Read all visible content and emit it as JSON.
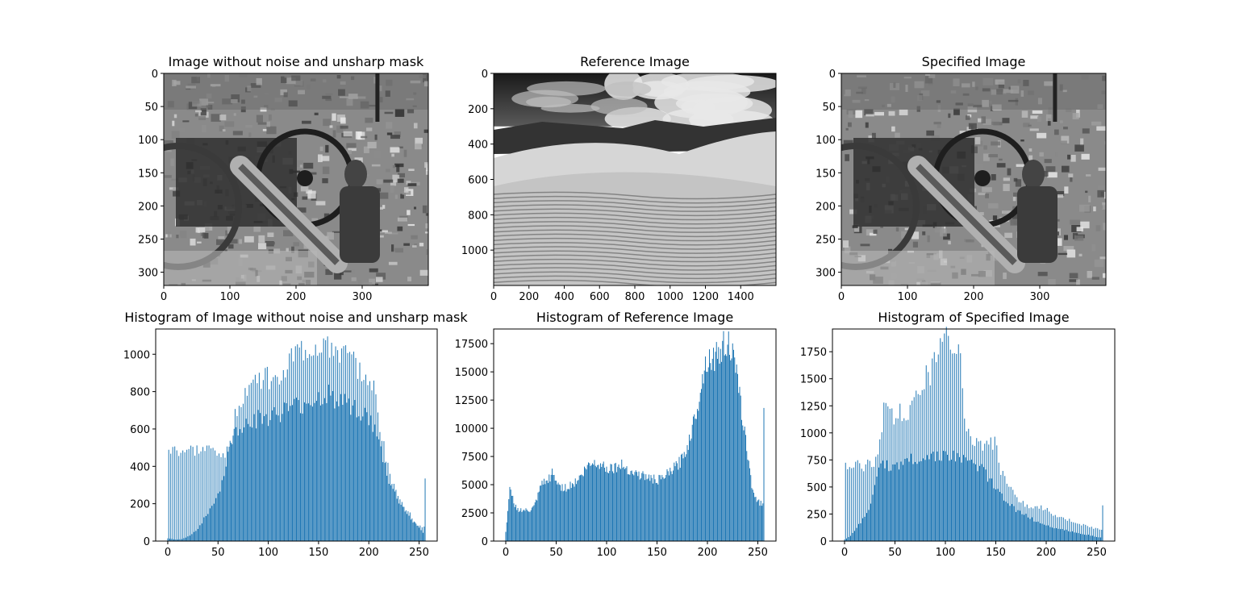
{
  "figure": {
    "image_panels": [
      {
        "title": "Image without noise and unsharp mask",
        "xticks": [
          "0",
          "100",
          "200",
          "300"
        ],
        "xtick_values": [
          0,
          100,
          200,
          300
        ],
        "yticks": [
          "0",
          "50",
          "100",
          "150",
          "200",
          "250",
          "300"
        ],
        "ytick_values": [
          0,
          50,
          100,
          150,
          200,
          250,
          300
        ],
        "xlim": [
          0,
          400
        ],
        "ylim": [
          0,
          320
        ],
        "scene": "cannon"
      },
      {
        "title": "Reference Image",
        "xticks": [
          "0",
          "200",
          "400",
          "600",
          "800",
          "1000",
          "1200",
          "1400"
        ],
        "xtick_values": [
          0,
          200,
          400,
          600,
          800,
          1000,
          1200,
          1400
        ],
        "yticks": [
          "0",
          "200",
          "400",
          "600",
          "800",
          "1000"
        ],
        "ytick_values": [
          0,
          200,
          400,
          600,
          800,
          1000
        ],
        "xlim": [
          0,
          1600
        ],
        "ylim": [
          0,
          1200
        ],
        "scene": "dunes"
      },
      {
        "title": "Specified Image",
        "xticks": [
          "0",
          "100",
          "200",
          "300"
        ],
        "xtick_values": [
          0,
          100,
          200,
          300
        ],
        "yticks": [
          "0",
          "50",
          "100",
          "150",
          "200",
          "250",
          "300"
        ],
        "ytick_values": [
          0,
          50,
          100,
          150,
          200,
          250,
          300
        ],
        "xlim": [
          0,
          400
        ],
        "ylim": [
          0,
          320
        ],
        "scene": "cannon"
      }
    ]
  },
  "chart_data": [
    {
      "type": "bar",
      "title": "Histogram of Image without noise and unsharp mask",
      "xlim": [
        -12,
        268
      ],
      "ylim": [
        0,
        1135
      ],
      "xticks": [
        0,
        50,
        100,
        150,
        200,
        250
      ],
      "yticks": [
        0,
        200,
        400,
        600,
        800,
        1000
      ],
      "bar_color": "#1f77b4",
      "envelope": [
        [
          0,
          15
        ],
        [
          5,
          10
        ],
        [
          10,
          8
        ],
        [
          15,
          12
        ],
        [
          20,
          25
        ],
        [
          25,
          40
        ],
        [
          30,
          70
        ],
        [
          35,
          110
        ],
        [
          40,
          150
        ],
        [
          45,
          200
        ],
        [
          50,
          250
        ],
        [
          55,
          330
        ],
        [
          60,
          460
        ],
        [
          65,
          560
        ],
        [
          70,
          600
        ],
        [
          75,
          620
        ],
        [
          80,
          640
        ],
        [
          90,
          650
        ],
        [
          100,
          660
        ],
        [
          110,
          680
        ],
        [
          120,
          700
        ],
        [
          130,
          720
        ],
        [
          140,
          740
        ],
        [
          150,
          760
        ],
        [
          160,
          780
        ],
        [
          170,
          760
        ],
        [
          180,
          740
        ],
        [
          190,
          700
        ],
        [
          200,
          650
        ],
        [
          205,
          600
        ],
        [
          210,
          520
        ],
        [
          215,
          420
        ],
        [
          220,
          320
        ],
        [
          225,
          260
        ],
        [
          230,
          210
        ],
        [
          235,
          170
        ],
        [
          240,
          130
        ],
        [
          245,
          100
        ],
        [
          250,
          70
        ],
        [
          255,
          40
        ]
      ],
      "spike_envelope": [
        [
          60,
          480
        ],
        [
          65,
          600
        ],
        [
          70,
          740
        ],
        [
          80,
          820
        ],
        [
          90,
          860
        ],
        [
          100,
          880
        ],
        [
          110,
          900
        ],
        [
          120,
          950
        ],
        [
          130,
          1000
        ],
        [
          140,
          1020
        ],
        [
          150,
          1040
        ],
        [
          160,
          1060
        ],
        [
          170,
          1000
        ],
        [
          180,
          960
        ],
        [
          190,
          920
        ],
        [
          200,
          900
        ],
        [
          205,
          800
        ],
        [
          210,
          640
        ],
        [
          215,
          500
        ],
        [
          220,
          380
        ],
        [
          225,
          300
        ],
        [
          230,
          240
        ],
        [
          240,
          150
        ],
        [
          245,
          110
        ],
        [
          250,
          80
        ]
      ],
      "last_bin": [
        256,
        335
      ]
    },
    {
      "type": "bar",
      "title": "Histogram of Reference Image",
      "xlim": [
        -12,
        268
      ],
      "ylim": [
        0,
        18800
      ],
      "xticks": [
        0,
        50,
        100,
        150,
        200,
        250
      ],
      "yticks": [
        0,
        2500,
        5000,
        7500,
        10000,
        12500,
        15000,
        17500
      ],
      "bar_color": "#1f77b4",
      "envelope": [
        [
          0,
          800
        ],
        [
          2,
          2500
        ],
        [
          4,
          4500
        ],
        [
          6,
          4200
        ],
        [
          8,
          3400
        ],
        [
          12,
          2800
        ],
        [
          18,
          2700
        ],
        [
          24,
          2700
        ],
        [
          28,
          3000
        ],
        [
          32,
          4000
        ],
        [
          36,
          5200
        ],
        [
          40,
          5100
        ],
        [
          44,
          5700
        ],
        [
          46,
          6000
        ],
        [
          50,
          5300
        ],
        [
          55,
          4800
        ],
        [
          60,
          4700
        ],
        [
          65,
          5000
        ],
        [
          70,
          5300
        ],
        [
          75,
          5800
        ],
        [
          80,
          6500
        ],
        [
          85,
          6900
        ],
        [
          90,
          6950
        ],
        [
          95,
          6800
        ],
        [
          100,
          6500
        ],
        [
          105,
          6500
        ],
        [
          110,
          6600
        ],
        [
          115,
          6700
        ],
        [
          120,
          6500
        ],
        [
          125,
          6100
        ],
        [
          130,
          6000
        ],
        [
          135,
          5800
        ],
        [
          140,
          5700
        ],
        [
          145,
          5500
        ],
        [
          150,
          5400
        ],
        [
          155,
          5500
        ],
        [
          160,
          5900
        ],
        [
          165,
          6300
        ],
        [
          170,
          6700
        ],
        [
          175,
          7300
        ],
        [
          180,
          8400
        ],
        [
          185,
          10000
        ],
        [
          190,
          12000
        ],
        [
          195,
          14500
        ],
        [
          200,
          16300
        ],
        [
          205,
          16200
        ],
        [
          210,
          16500
        ],
        [
          215,
          17200
        ],
        [
          220,
          17800
        ],
        [
          225,
          16500
        ],
        [
          230,
          14000
        ],
        [
          235,
          11000
        ],
        [
          240,
          7500
        ],
        [
          245,
          4500
        ],
        [
          250,
          3500
        ],
        [
          254,
          3300
        ]
      ],
      "last_bin": [
        256,
        11800
      ]
    },
    {
      "type": "bar",
      "title": "Histogram of Specified Image",
      "xlim": [
        -12,
        268
      ],
      "ylim": [
        0,
        1960
      ],
      "xticks": [
        0,
        50,
        100,
        150,
        200,
        250
      ],
      "yticks": [
        0,
        250,
        500,
        750,
        1000,
        1250,
        1500,
        1750
      ],
      "bar_color": "#1f77b4",
      "envelope": [
        [
          0,
          15
        ],
        [
          5,
          40
        ],
        [
          10,
          100
        ],
        [
          15,
          160
        ],
        [
          20,
          240
        ],
        [
          25,
          330
        ],
        [
          30,
          480
        ],
        [
          33,
          620
        ],
        [
          37,
          700
        ],
        [
          45,
          700
        ],
        [
          55,
          720
        ],
        [
          65,
          750
        ],
        [
          75,
          770
        ],
        [
          85,
          780
        ],
        [
          95,
          800
        ],
        [
          105,
          780
        ],
        [
          115,
          760
        ],
        [
          125,
          720
        ],
        [
          135,
          680
        ],
        [
          145,
          560
        ],
        [
          150,
          480
        ],
        [
          155,
          420
        ],
        [
          160,
          380
        ],
        [
          165,
          340
        ],
        [
          170,
          290
        ],
        [
          175,
          260
        ],
        [
          180,
          240
        ],
        [
          185,
          210
        ],
        [
          190,
          180
        ],
        [
          200,
          150
        ],
        [
          210,
          120
        ],
        [
          220,
          100
        ],
        [
          230,
          80
        ],
        [
          240,
          60
        ],
        [
          250,
          40
        ],
        [
          255,
          30
        ]
      ],
      "spike_envelope": [
        [
          30,
          700
        ],
        [
          35,
          900
        ],
        [
          40,
          1280
        ],
        [
          45,
          1260
        ],
        [
          50,
          1000
        ],
        [
          55,
          1300
        ],
        [
          60,
          1000
        ],
        [
          65,
          1300
        ],
        [
          70,
          1350
        ],
        [
          75,
          1400
        ],
        [
          80,
          1500
        ],
        [
          85,
          1550
        ],
        [
          90,
          1650
        ],
        [
          95,
          1850
        ],
        [
          100,
          1870
        ],
        [
          105,
          1850
        ],
        [
          110,
          1800
        ],
        [
          115,
          1700
        ],
        [
          120,
          1100
        ],
        [
          125,
          1000
        ],
        [
          130,
          900
        ],
        [
          135,
          880
        ],
        [
          140,
          900
        ],
        [
          145,
          920
        ],
        [
          150,
          900
        ],
        [
          155,
          650
        ],
        [
          160,
          560
        ],
        [
          165,
          480
        ],
        [
          170,
          400
        ],
        [
          175,
          380
        ],
        [
          180,
          320
        ],
        [
          185,
          300
        ],
        [
          190,
          300
        ],
        [
          195,
          320
        ],
        [
          200,
          290
        ],
        [
          205,
          260
        ],
        [
          210,
          230
        ],
        [
          220,
          200
        ],
        [
          230,
          170
        ],
        [
          240,
          140
        ],
        [
          250,
          110
        ]
      ],
      "last_bin": [
        256,
        330
      ]
    }
  ]
}
